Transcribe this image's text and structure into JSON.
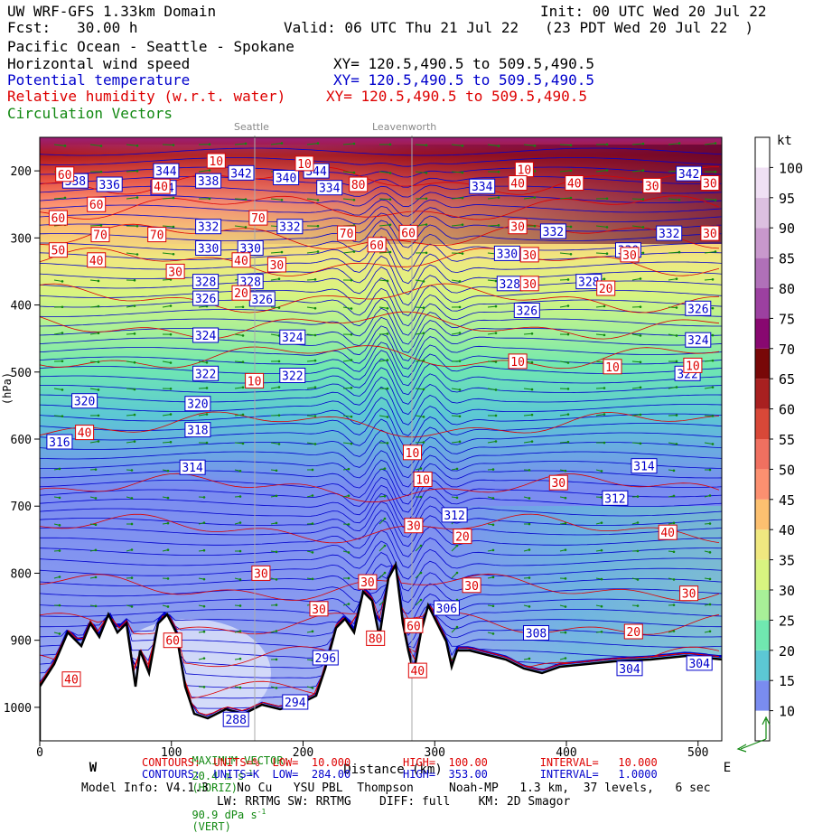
{
  "header": {
    "line1_left": "UW WRF-GFS 1.33km Domain",
    "line1_right": "Init: 00 UTC Wed 20 Jul 22",
    "fcst": "Fcst:   30.00 h",
    "valid": "Valid: 06 UTC Thu 21 Jul 22   (23 PDT Wed 20 Jul 22  )",
    "region": "Pacific Ocean - Seattle - Spokane",
    "field1": "Horizontal wind speed",
    "xy1": "XY= 120.5,490.5 to 509.5,490.5",
    "field2": "Potential temperature",
    "xy2": "XY= 120.5,490.5 to 509.5,490.5",
    "field3": "Relative humidity (w.r.t. water)",
    "xy3": "XY= 120.5,490.5 to 509.5,490.5",
    "field4": "Circulation Vectors"
  },
  "cities": {
    "seattle": "Seattle",
    "leavenworth": "Leavenworth"
  },
  "colors": {
    "theta": "#0000cc",
    "rh": "#dd0000",
    "vectors": "#118811"
  },
  "chart_data": {
    "type": "heatmap",
    "xlabel": "Distance (km)",
    "ylabel": "(hPa)",
    "x_ticks": [
      0,
      100,
      200,
      300,
      400,
      500
    ],
    "y_ticks": [
      200,
      300,
      400,
      500,
      600,
      700,
      800,
      900,
      1000
    ],
    "y_tick_labels": [
      "200",
      "300",
      "400",
      "500",
      "600",
      "700",
      "800",
      "900",
      "1000"
    ],
    "xlim": [
      0,
      518
    ],
    "ylim": [
      1050,
      150
    ],
    "direction_labels": [
      "W",
      "E"
    ],
    "colorbar": {
      "unit": "kt",
      "ticks": [
        10,
        15,
        20,
        25,
        30,
        35,
        40,
        45,
        50,
        55,
        60,
        65,
        70,
        75,
        80,
        85,
        90,
        95,
        100
      ],
      "colors": [
        "#ffffff",
        "#7a8cf0",
        "#5cc8d4",
        "#70e8b0",
        "#a8f098",
        "#d8f480",
        "#f0e880",
        "#fcc070",
        "#fc9070",
        "#f07060",
        "#d84838",
        "#a82020",
        "#780808",
        "#880870",
        "#9c40a0",
        "#b070b8",
        "#c898cc",
        "#dcc0e0",
        "#f0e0f4",
        "#ffffff"
      ]
    },
    "theta_labels": [
      {
        "x": 27,
        "p": 215,
        "v": "338"
      },
      {
        "x": 53,
        "p": 220,
        "v": "336"
      },
      {
        "x": 96,
        "p": 200,
        "v": "344"
      },
      {
        "x": 94,
        "p": 225,
        "v": "334"
      },
      {
        "x": 128,
        "p": 215,
        "v": "338"
      },
      {
        "x": 153,
        "p": 203,
        "v": "342"
      },
      {
        "x": 187,
        "p": 210,
        "v": "340"
      },
      {
        "x": 210,
        "p": 200,
        "v": "344"
      },
      {
        "x": 220,
        "p": 225,
        "v": "334"
      },
      {
        "x": 128,
        "p": 283,
        "v": "332"
      },
      {
        "x": 190,
        "p": 283,
        "v": "332"
      },
      {
        "x": 128,
        "p": 315,
        "v": "330"
      },
      {
        "x": 160,
        "p": 315,
        "v": "330"
      },
      {
        "x": 355,
        "p": 323,
        "v": "330"
      },
      {
        "x": 447,
        "p": 318,
        "v": "330"
      },
      {
        "x": 390,
        "p": 290,
        "v": "332"
      },
      {
        "x": 478,
        "p": 293,
        "v": "332"
      },
      {
        "x": 336,
        "p": 223,
        "v": "334"
      },
      {
        "x": 493,
        "p": 204,
        "v": "342"
      },
      {
        "x": 126,
        "p": 365,
        "v": "328"
      },
      {
        "x": 160,
        "p": 365,
        "v": "328"
      },
      {
        "x": 357,
        "p": 368,
        "v": "328"
      },
      {
        "x": 417,
        "p": 365,
        "v": "328"
      },
      {
        "x": 126,
        "p": 390,
        "v": "326"
      },
      {
        "x": 169,
        "p": 391,
        "v": "326"
      },
      {
        "x": 370,
        "p": 408,
        "v": "326"
      },
      {
        "x": 500,
        "p": 405,
        "v": "326"
      },
      {
        "x": 126,
        "p": 445,
        "v": "324"
      },
      {
        "x": 192,
        "p": 448,
        "v": "324"
      },
      {
        "x": 500,
        "p": 452,
        "v": "324"
      },
      {
        "x": 126,
        "p": 502,
        "v": "322"
      },
      {
        "x": 192,
        "p": 505,
        "v": "322"
      },
      {
        "x": 492,
        "p": 502,
        "v": "322"
      },
      {
        "x": 34,
        "p": 543,
        "v": "320"
      },
      {
        "x": 120,
        "p": 547,
        "v": "320"
      },
      {
        "x": 120,
        "p": 586,
        "v": "318"
      },
      {
        "x": 15,
        "p": 604,
        "v": "316"
      },
      {
        "x": 116,
        "p": 642,
        "v": "314"
      },
      {
        "x": 459,
        "p": 640,
        "v": "314"
      },
      {
        "x": 437,
        "p": 688,
        "v": "312"
      },
      {
        "x": 315,
        "p": 713,
        "v": "312"
      },
      {
        "x": 309,
        "p": 852,
        "v": "306"
      },
      {
        "x": 377,
        "p": 889,
        "v": "308"
      },
      {
        "x": 448,
        "p": 942,
        "v": "304"
      },
      {
        "x": 501,
        "p": 934,
        "v": "304"
      },
      {
        "x": 217,
        "p": 926,
        "v": "296"
      },
      {
        "x": 194,
        "p": 992,
        "v": "294"
      },
      {
        "x": 149,
        "p": 1018,
        "v": "288"
      }
    ],
    "rh_labels": [
      {
        "x": 19,
        "p": 205,
        "v": "60"
      },
      {
        "x": 134,
        "p": 185,
        "v": "10"
      },
      {
        "x": 201,
        "p": 189,
        "v": "10"
      },
      {
        "x": 92,
        "p": 223,
        "v": "40"
      },
      {
        "x": 43,
        "p": 250,
        "v": "60"
      },
      {
        "x": 14,
        "p": 270,
        "v": "60"
      },
      {
        "x": 166,
        "p": 270,
        "v": "70"
      },
      {
        "x": 242,
        "p": 220,
        "v": "80"
      },
      {
        "x": 368,
        "p": 198,
        "v": "10"
      },
      {
        "x": 363,
        "p": 218,
        "v": "40"
      },
      {
        "x": 406,
        "p": 218,
        "v": "40"
      },
      {
        "x": 465,
        "p": 222,
        "v": "30"
      },
      {
        "x": 509,
        "p": 218,
        "v": "30"
      },
      {
        "x": 46,
        "p": 295,
        "v": "70"
      },
      {
        "x": 89,
        "p": 295,
        "v": "70"
      },
      {
        "x": 233,
        "p": 293,
        "v": "70"
      },
      {
        "x": 256,
        "p": 310,
        "v": "60"
      },
      {
        "x": 280,
        "p": 292,
        "v": "60"
      },
      {
        "x": 14,
        "p": 318,
        "v": "50"
      },
      {
        "x": 43,
        "p": 333,
        "v": "40"
      },
      {
        "x": 153,
        "p": 333,
        "v": "40"
      },
      {
        "x": 103,
        "p": 350,
        "v": "30"
      },
      {
        "x": 180,
        "p": 340,
        "v": "30"
      },
      {
        "x": 363,
        "p": 283,
        "v": "30"
      },
      {
        "x": 372,
        "p": 325,
        "v": "30"
      },
      {
        "x": 372,
        "p": 368,
        "v": "30"
      },
      {
        "x": 430,
        "p": 375,
        "v": "20"
      },
      {
        "x": 448,
        "p": 325,
        "v": "30"
      },
      {
        "x": 509,
        "p": 293,
        "v": "30"
      },
      {
        "x": 153,
        "p": 382,
        "v": "20"
      },
      {
        "x": 163,
        "p": 513,
        "v": "10"
      },
      {
        "x": 363,
        "p": 484,
        "v": "10"
      },
      {
        "x": 435,
        "p": 492,
        "v": "10"
      },
      {
        "x": 496,
        "p": 490,
        "v": "10"
      },
      {
        "x": 34,
        "p": 590,
        "v": "40"
      },
      {
        "x": 283,
        "p": 620,
        "v": "10"
      },
      {
        "x": 291,
        "p": 660,
        "v": "10"
      },
      {
        "x": 394,
        "p": 665,
        "v": "30"
      },
      {
        "x": 284,
        "p": 729,
        "v": "30"
      },
      {
        "x": 321,
        "p": 745,
        "v": "20"
      },
      {
        "x": 477,
        "p": 739,
        "v": "40"
      },
      {
        "x": 168,
        "p": 800,
        "v": "30"
      },
      {
        "x": 249,
        "p": 813,
        "v": "30"
      },
      {
        "x": 328,
        "p": 818,
        "v": "30"
      },
      {
        "x": 493,
        "p": 830,
        "v": "30"
      },
      {
        "x": 212,
        "p": 853,
        "v": "30"
      },
      {
        "x": 284,
        "p": 878,
        "v": "60"
      },
      {
        "x": 101,
        "p": 900,
        "v": "60"
      },
      {
        "x": 451,
        "p": 887,
        "v": "20"
      },
      {
        "x": 255,
        "p": 897,
        "v": "80"
      },
      {
        "x": 287,
        "p": 945,
        "v": "40"
      },
      {
        "x": 24,
        "p": 958,
        "v": "40"
      }
    ]
  },
  "footer": {
    "max_vector_label": "MAXIMUM VECTOR:",
    "max_vector_h": "20.4 m s",
    "max_vector_h_sup": "-1",
    "max_vector_h_tag": "(HORIZ)",
    "max_vector_v": "90.9 dPa s",
    "max_vector_v_sup": "-1",
    "max_vector_v_tag": "(VERT)",
    "rh_contours": "CONTOURS:  UNITS=%  LOW=  10.000        HIGH=  100.00        INTERVAL=   10.000",
    "th_contours": "CONTOURS:  UNITS=K  LOW=  284.00        HIGH=  353.00        INTERVAL=   1.0000",
    "model_info": "Model Info: V4.1.3    No Cu   YSU PBL  Thompson     Noah-MP   1.3 km,  37 levels,   6 sec",
    "model_info2": "LW: RRTMG SW: RRTMG    DIFF: full    KM: 2D Smagor"
  }
}
